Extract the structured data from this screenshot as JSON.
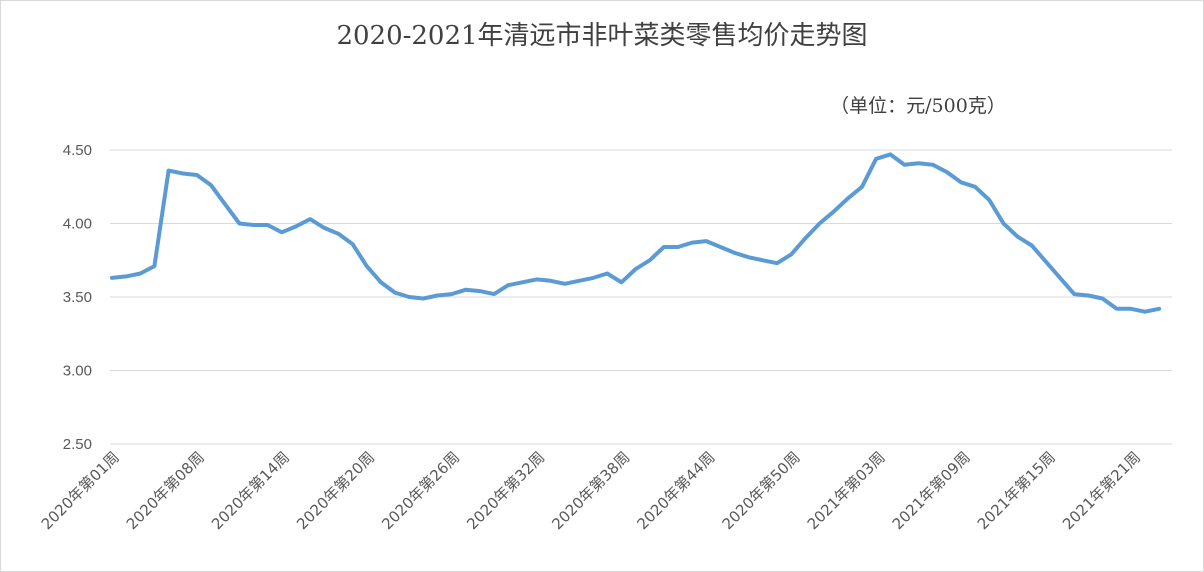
{
  "chart_data": {
    "type": "line",
    "title": "2020-2021年清远市非叶菜类零售均价走势图",
    "unit": "（单位：元/500克）",
    "ylim": [
      2.5,
      4.5
    ],
    "yticks": [
      "2.50",
      "3.00",
      "3.50",
      "4.00",
      "4.50"
    ],
    "grid": true,
    "x_labels": [
      "2020年第01周",
      "2020年第08周",
      "2020年第14周",
      "2020年第20周",
      "2020年第26周",
      "2020年第32周",
      "2020年第38周",
      "2020年第44周",
      "2020年第50周",
      "2021年第03周",
      "2021年第09周",
      "2021年第15周",
      "2021年第21周"
    ],
    "series": [
      {
        "color": "#5b9bd5",
        "values": [
          3.63,
          3.64,
          3.66,
          3.71,
          4.36,
          4.34,
          4.33,
          4.26,
          4.13,
          4.0,
          3.99,
          3.99,
          3.94,
          3.98,
          4.03,
          3.97,
          3.93,
          3.86,
          3.71,
          3.6,
          3.53,
          3.5,
          3.49,
          3.51,
          3.52,
          3.55,
          3.54,
          3.52,
          3.58,
          3.6,
          3.62,
          3.61,
          3.59,
          3.61,
          3.63,
          3.66,
          3.6,
          3.69,
          3.75,
          3.84,
          3.84,
          3.87,
          3.88,
          3.84,
          3.8,
          3.77,
          3.75,
          3.73,
          3.79,
          3.9,
          4.0,
          4.08,
          4.17,
          4.25,
          4.44,
          4.47,
          4.4,
          4.41,
          4.4,
          4.35,
          4.28,
          4.25,
          4.16,
          4.0,
          3.91,
          3.85,
          3.74,
          3.63,
          3.52,
          3.51,
          3.49,
          3.42,
          3.42,
          3.4,
          3.42
        ]
      }
    ]
  }
}
